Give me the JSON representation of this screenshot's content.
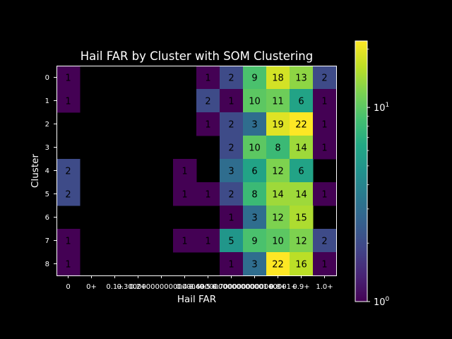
{
  "chart_data": {
    "type": "heatmap",
    "title": "Hail FAR by Cluster with SOM Clustering",
    "xlabel": "Hail FAR",
    "ylabel": "Cluster",
    "x_tick_labels": [
      "0",
      "0+",
      "0.1+",
      "0.2+",
      "0.3+",
      "0.4+",
      "0.5+",
      "0.6+",
      "0.7+",
      "0.8+",
      "0.9+",
      "1.0+"
    ],
    "x_tick_labels_as_rendered": [
      "0",
      "0+",
      "0.1+",
      "0.2+",
      "0.30000000000000004+",
      "0.4+",
      "0.5+",
      "0.6000000000000001+",
      "0.7000000000000001+",
      "0.8+",
      "0.9+",
      "1.0+"
    ],
    "y_tick_labels": [
      "0",
      "1",
      "2",
      "3",
      "4",
      "5",
      "6",
      "7",
      "8"
    ],
    "values": [
      [
        1,
        0,
        0,
        0,
        0,
        0,
        1,
        2,
        9,
        18,
        13,
        2
      ],
      [
        1,
        0,
        0,
        0,
        0,
        0,
        2,
        1,
        10,
        11,
        6,
        1
      ],
      [
        0,
        0,
        0,
        0,
        0,
        0,
        1,
        2,
        3,
        19,
        22,
        1
      ],
      [
        0,
        0,
        0,
        0,
        0,
        0,
        0,
        2,
        10,
        8,
        14,
        1
      ],
      [
        2,
        0,
        0,
        0,
        0,
        1,
        0,
        3,
        6,
        12,
        6,
        0
      ],
      [
        2,
        0,
        0,
        0,
        0,
        1,
        1,
        2,
        8,
        14,
        14,
        1
      ],
      [
        0,
        0,
        0,
        0,
        0,
        0,
        0,
        1,
        3,
        12,
        15,
        0
      ],
      [
        1,
        0,
        0,
        0,
        0,
        1,
        1,
        5,
        9,
        10,
        12,
        2
      ],
      [
        1,
        0,
        0,
        0,
        0,
        0,
        0,
        1,
        3,
        22,
        16,
        1
      ]
    ],
    "colormap": "viridis",
    "color_scale": "log",
    "color_range": [
      1,
      22
    ],
    "colorbar_tick_labels": [
      "10^0",
      "10^1"
    ],
    "zero_cells": "empty",
    "grid": false
  },
  "colors": {
    "background": "#000000",
    "foreground": "#ffffff",
    "cell_text": "#000000"
  }
}
